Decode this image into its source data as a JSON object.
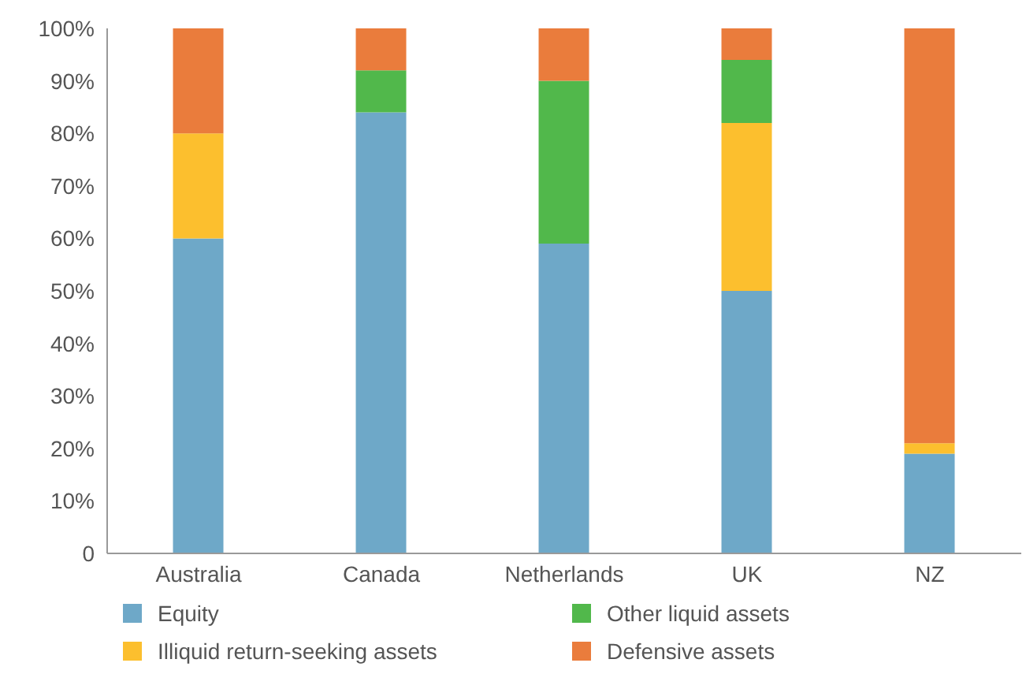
{
  "chart_data": {
    "type": "bar",
    "stacked": true,
    "categories": [
      "Australia",
      "Canada",
      "Netherlands",
      "UK",
      "NZ"
    ],
    "series": [
      {
        "name": "Equity",
        "color": "#6ea8c8",
        "values": [
          60,
          84,
          59,
          50,
          19
        ]
      },
      {
        "name": "Illiquid return-seeking assets",
        "color": "#fcbf2e",
        "values": [
          20,
          0,
          0,
          32,
          2
        ]
      },
      {
        "name": "Other liquid assets",
        "color": "#51b84b",
        "values": [
          0,
          8,
          31,
          12,
          0
        ]
      },
      {
        "name": "Defensive assets",
        "color": "#ea7c3c",
        "values": [
          20,
          8,
          10,
          6,
          79
        ]
      }
    ],
    "ylim": [
      0,
      100
    ],
    "yticks": [
      {
        "value": 0,
        "label": "0"
      },
      {
        "value": 10,
        "label": "10%"
      },
      {
        "value": 20,
        "label": "20%"
      },
      {
        "value": 30,
        "label": "30%"
      },
      {
        "value": 40,
        "label": "40%"
      },
      {
        "value": 50,
        "label": "50%"
      },
      {
        "value": 60,
        "label": "60%"
      },
      {
        "value": 70,
        "label": "70%"
      },
      {
        "value": 80,
        "label": "80%"
      },
      {
        "value": 90,
        "label": "90%"
      },
      {
        "value": 100,
        "label": "100%"
      }
    ],
    "grid": false,
    "legend": "bottom"
  }
}
